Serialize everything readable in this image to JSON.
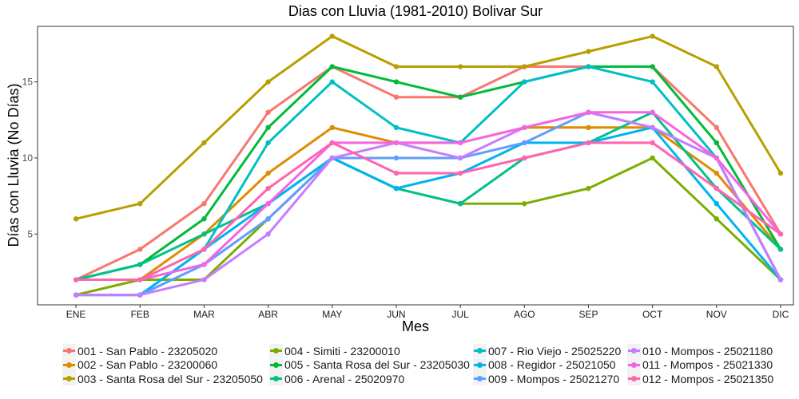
{
  "chart_data": {
    "type": "line",
    "title": "Dias con Lluvia (1981-2010)  Bolivar Sur",
    "xlabel": "Mes",
    "ylabel": "Días con Lluvia (No Días)",
    "categories": [
      "ENE",
      "FEB",
      "MAR",
      "ABR",
      "MAY",
      "JUN",
      "JUL",
      "AGO",
      "SEP",
      "OCT",
      "NOV",
      "DIC"
    ],
    "yticks": [
      "5",
      "10",
      "15"
    ],
    "ylim": [
      0.35,
      18.65
    ],
    "grid": false,
    "legend_position": "bottom",
    "series": [
      {
        "name": "001 - San Pablo - 23205020",
        "color": "#F8766D",
        "values": [
          2,
          4,
          7,
          13,
          16,
          14,
          14,
          16,
          16,
          16,
          12,
          5
        ]
      },
      {
        "name": "002 - San Pablo - 23200060",
        "color": "#DE8C00",
        "values": [
          1,
          2,
          5,
          9,
          12,
          11,
          11,
          12,
          12,
          12,
          9,
          4
        ]
      },
      {
        "name": "003 - Santa Rosa del Sur - 23205050",
        "color": "#B79F00",
        "values": [
          6,
          7,
          11,
          15,
          18,
          16,
          16,
          16,
          17,
          18,
          16,
          9
        ]
      },
      {
        "name": "004 - Simiti - 23200010",
        "color": "#7CAE00",
        "values": [
          1,
          2,
          2,
          6,
          10,
          8,
          7,
          7,
          8,
          10,
          6,
          2
        ]
      },
      {
        "name": "005 - Santa Rosa del Sur - 23205030",
        "color": "#00BA38",
        "values": [
          2,
          3,
          6,
          12,
          16,
          15,
          14,
          15,
          16,
          16,
          11,
          4
        ]
      },
      {
        "name": "006 - Arenal - 25020970",
        "color": "#00C08B",
        "values": [
          2,
          3,
          5,
          7,
          10,
          8,
          7,
          10,
          11,
          13,
          8,
          4
        ]
      },
      {
        "name": "007 - Rio Viejo - 25025220",
        "color": "#00BFC4",
        "values": [
          1,
          1,
          4,
          11,
          15,
          12,
          11,
          15,
          16,
          15,
          10,
          2
        ]
      },
      {
        "name": "008 - Regidor - 25021050",
        "color": "#00B4F0",
        "values": [
          1,
          1,
          4,
          7,
          10,
          8,
          9,
          11,
          11,
          12,
          7,
          2
        ]
      },
      {
        "name": "009 - Mompos - 25021270",
        "color": "#619CFF",
        "values": [
          1,
          1,
          3,
          6,
          10,
          10,
          10,
          11,
          13,
          12,
          10,
          2
        ]
      },
      {
        "name": "010 - Mompos - 25021180",
        "color": "#C77CFF",
        "values": [
          1,
          1,
          2,
          5,
          10,
          11,
          10,
          12,
          13,
          12,
          10,
          2
        ]
      },
      {
        "name": "011 - Mompos - 25021330",
        "color": "#F564E3",
        "values": [
          2,
          2,
          3,
          7,
          11,
          11,
          11,
          12,
          13,
          13,
          10,
          5
        ]
      },
      {
        "name": "012 - Mompos - 25021350",
        "color": "#FF64B0",
        "values": [
          2,
          2,
          4,
          8,
          11,
          9,
          9,
          10,
          11,
          11,
          8,
          5
        ]
      }
    ]
  }
}
